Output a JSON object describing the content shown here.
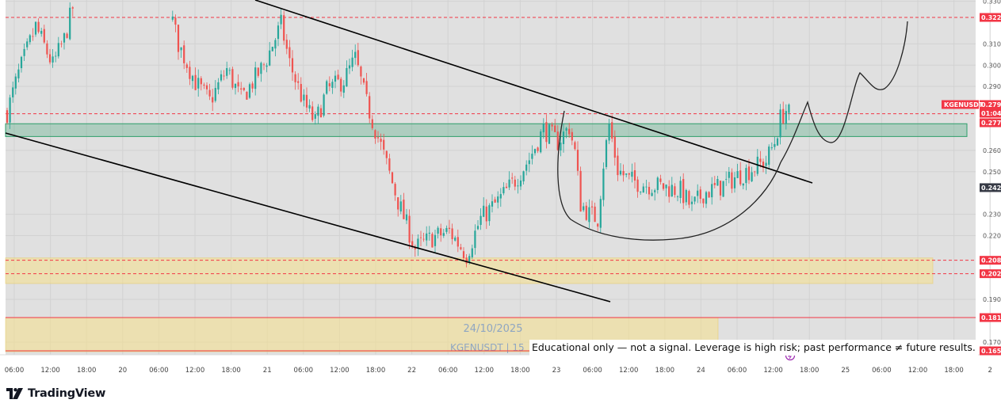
{
  "chart_data": {
    "type": "candlestick",
    "symbol_tag": "KGENUSDT",
    "watermark": {
      "date": "24/10/2025",
      "symbol": "KGENUSDT | 15"
    },
    "disclaimer": "Educational only — not a signal. Leverage is high risk; past performance ≠ future results.",
    "y_axis": {
      "range": [
        0.163,
        0.332
      ],
      "ticks": [
        "0.330",
        "0.310",
        "0.300",
        "0.290",
        "0.260",
        "0.250",
        "0.230",
        "0.220",
        "0.190",
        "0.170"
      ]
    },
    "price_tags": [
      {
        "value": 0.3224,
        "label": "0.3224",
        "color": "#f23645",
        "line": "dashed"
      },
      {
        "value": 0.2795,
        "label": "0.2795",
        "color": "#f23645",
        "line": "none"
      },
      {
        "value": 0.2752,
        "label": "01:04",
        "color": "#f23645",
        "line": "none"
      },
      {
        "value": 0.2772,
        "label": "0.2772",
        "color": "#f23645",
        "line": "dashed"
      },
      {
        "value": 0.2425,
        "label": "0.2425",
        "color": "#363a45",
        "line": "none"
      },
      {
        "value": 0.2084,
        "label": "0.2084",
        "color": "#f23645",
        "line": "dashed"
      },
      {
        "value": 0.2021,
        "label": "0.2021",
        "color": "#f23645",
        "line": "dashed"
      },
      {
        "value": 0.1815,
        "label": "0.1815",
        "color": "#f23645",
        "line": "solid"
      },
      {
        "value": 0.1659,
        "label": "0.1659",
        "color": "#f23645",
        "line": "solid"
      }
    ],
    "x_axis": {
      "ticks": [
        "06:00",
        "12:00",
        "18:00",
        "20",
        "06:00",
        "12:00",
        "18:00",
        "21",
        "06:00",
        "12:00",
        "18:00",
        "22",
        "06:00",
        "12:00",
        "18:00",
        "23",
        "06:00",
        "12:00",
        "18:00",
        "24",
        "06:00",
        "12:00",
        "18:00",
        "25",
        "06:00",
        "12:00",
        "18:00",
        "2"
      ]
    },
    "zones": [
      {
        "name": "resistance-zone",
        "from": 0.2665,
        "to": 0.2725,
        "color": "#2e9e6b"
      },
      {
        "name": "support-zone",
        "from": 0.1975,
        "to": 0.2095,
        "color": "#f5e08a"
      },
      {
        "name": "lower-zone",
        "from": 0.1655,
        "to": 0.1815,
        "color": "#f5e08a"
      }
    ],
    "anchors": [
      {
        "t": 0,
        "p": 0.278
      },
      {
        "t": 4,
        "p": 0.296
      },
      {
        "t": 10,
        "p": 0.318
      },
      {
        "t": 16,
        "p": 0.3
      },
      {
        "t": 20,
        "p": 0.312
      },
      {
        "t": 24,
        "p": 0.332
      },
      {
        "t": 55,
        "p": 0.336
      },
      {
        "t": 60,
        "p": 0.31
      },
      {
        "t": 66,
        "p": 0.292
      },
      {
        "t": 71,
        "p": 0.283
      },
      {
        "t": 77,
        "p": 0.298
      },
      {
        "t": 82,
        "p": 0.284
      },
      {
        "t": 90,
        "p": 0.3
      },
      {
        "t": 96,
        "p": 0.319
      },
      {
        "t": 99,
        "p": 0.301
      },
      {
        "t": 104,
        "p": 0.282
      },
      {
        "t": 108,
        "p": 0.273
      },
      {
        "t": 112,
        "p": 0.288
      },
      {
        "t": 118,
        "p": 0.293
      },
      {
        "t": 122,
        "p": 0.303
      },
      {
        "t": 126,
        "p": 0.282
      },
      {
        "t": 131,
        "p": 0.262
      },
      {
        "t": 137,
        "p": 0.236
      },
      {
        "t": 143,
        "p": 0.214
      },
      {
        "t": 149,
        "p": 0.219
      },
      {
        "t": 155,
        "p": 0.222
      },
      {
        "t": 161,
        "p": 0.211
      },
      {
        "t": 166,
        "p": 0.228
      },
      {
        "t": 172,
        "p": 0.236
      },
      {
        "t": 178,
        "p": 0.246
      },
      {
        "t": 183,
        "p": 0.256
      },
      {
        "t": 188,
        "p": 0.27
      },
      {
        "t": 193,
        "p": 0.264
      },
      {
        "t": 197,
        "p": 0.271
      },
      {
        "t": 199,
        "p": 0.259
      },
      {
        "t": 201,
        "p": 0.235
      },
      {
        "t": 204,
        "p": 0.23
      },
      {
        "t": 207,
        "p": 0.228
      },
      {
        "t": 209,
        "p": 0.254
      },
      {
        "t": 211,
        "p": 0.272
      },
      {
        "t": 214,
        "p": 0.251
      },
      {
        "t": 218,
        "p": 0.246
      },
      {
        "t": 224,
        "p": 0.244
      },
      {
        "t": 230,
        "p": 0.243
      },
      {
        "t": 236,
        "p": 0.241
      },
      {
        "t": 240,
        "p": 0.233
      },
      {
        "t": 244,
        "p": 0.24
      },
      {
        "t": 250,
        "p": 0.243
      },
      {
        "t": 256,
        "p": 0.248
      },
      {
        "t": 262,
        "p": 0.252
      },
      {
        "t": 266,
        "p": 0.255
      },
      {
        "t": 269,
        "p": 0.264
      },
      {
        "t": 271,
        "p": 0.275
      },
      {
        "t": 273,
        "p": 0.279
      },
      {
        "t": 274,
        "p": 0.277
      }
    ],
    "grid": true
  }
}
